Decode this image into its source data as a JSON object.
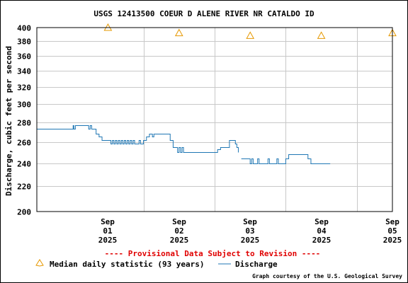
{
  "chart_data": {
    "type": "line",
    "title": "USGS 12413500 COEUR D ALENE RIVER NR CATALDO ID",
    "ylabel": "Discharge, cubic feet per second",
    "ylim": [
      200,
      400
    ],
    "y_scale": "log",
    "grid": true,
    "y_ticks": [
      200,
      220,
      240,
      260,
      280,
      300,
      320,
      340,
      360,
      380,
      400
    ],
    "x_ticks": [
      {
        "day": 1,
        "label": [
          "Sep",
          "01",
          "2025"
        ]
      },
      {
        "day": 2,
        "label": [
          "Sep",
          "02",
          "2025"
        ]
      },
      {
        "day": 3,
        "label": [
          "Sep",
          "03",
          "2025"
        ]
      },
      {
        "day": 4,
        "label": [
          "Sep",
          "04",
          "2025"
        ]
      },
      {
        "day": 5,
        "label": [
          "Sep",
          "05",
          "2025"
        ]
      }
    ],
    "xlim": [
      "2025-08-31 12:00",
      "2025-09-05 12:00"
    ],
    "series": [
      {
        "name": "Median daily statistic (93 years)",
        "type": "marker",
        "color": "#E69800",
        "points": [
          {
            "date": "2025-09-01",
            "y": 400
          },
          {
            "date": "2025-09-02",
            "y": 392
          },
          {
            "date": "2025-09-03",
            "y": 388
          },
          {
            "date": "2025-09-04",
            "y": 388
          },
          {
            "date": "2025-09-05",
            "y": 392
          }
        ]
      },
      {
        "name": "Discharge",
        "type": "line",
        "color": "#1F77B4",
        "segments": [
          [
            [
              "2025-08-31 12:00",
              273
            ],
            [
              "2025-09-01 00:00",
              273
            ],
            [
              "2025-09-01 00:15",
              277
            ],
            [
              "2025-09-01 00:30",
              273
            ],
            [
              "2025-09-01 01:00",
              277
            ],
            [
              "2025-09-01 02:00",
              277
            ],
            [
              "2025-09-01 04:00",
              277
            ],
            [
              "2025-09-01 05:00",
              277
            ],
            [
              "2025-09-01 05:30",
              273
            ],
            [
              "2025-09-01 06:00",
              277
            ],
            [
              "2025-09-01 06:30",
              273
            ],
            [
              "2025-09-01 08:00",
              268
            ],
            [
              "2025-09-01 09:00",
              265
            ],
            [
              "2025-09-01 10:00",
              262
            ],
            [
              "2025-09-01 12:00",
              262
            ],
            [
              "2025-09-01 13:00",
              258
            ],
            [
              "2025-09-01 13:30",
              262
            ],
            [
              "2025-09-01 14:00",
              258
            ],
            [
              "2025-09-01 14:30",
              262
            ],
            [
              "2025-09-01 15:00",
              258
            ],
            [
              "2025-09-01 15:30",
              262
            ],
            [
              "2025-09-01 16:00",
              258
            ],
            [
              "2025-09-01 16:30",
              262
            ],
            [
              "2025-09-01 17:00",
              258
            ],
            [
              "2025-09-01 17:30",
              262
            ],
            [
              "2025-09-01 18:00",
              258
            ],
            [
              "2025-09-01 18:30",
              262
            ],
            [
              "2025-09-01 19:00",
              258
            ],
            [
              "2025-09-01 19:30",
              262
            ],
            [
              "2025-09-01 20:00",
              258
            ],
            [
              "2025-09-01 20:30",
              262
            ],
            [
              "2025-09-01 21:00",
              258
            ],
            [
              "2025-09-01 22:00",
              258
            ],
            [
              "2025-09-01 22:30",
              262
            ],
            [
              "2025-09-01 23:00",
              258
            ],
            [
              "2025-09-02 00:00",
              262
            ],
            [
              "2025-09-02 01:00",
              265
            ],
            [
              "2025-09-02 02:00",
              268
            ],
            [
              "2025-09-02 03:00",
              265
            ],
            [
              "2025-09-02 03:30",
              268
            ],
            [
              "2025-09-02 05:00",
              268
            ],
            [
              "2025-09-02 06:00",
              268
            ],
            [
              "2025-09-02 07:00",
              268
            ],
            [
              "2025-09-02 08:00",
              268
            ],
            [
              "2025-09-02 09:00",
              262
            ],
            [
              "2025-09-02 10:00",
              255
            ],
            [
              "2025-09-02 11:00",
              255
            ],
            [
              "2025-09-02 11:30",
              250
            ],
            [
              "2025-09-02 12:00",
              255
            ],
            [
              "2025-09-02 12:30",
              250
            ],
            [
              "2025-09-02 13:00",
              255
            ],
            [
              "2025-09-02 13:30",
              250
            ],
            [
              "2025-09-02 15:00",
              250
            ],
            [
              "2025-09-02 18:00",
              250
            ],
            [
              "2025-09-02 21:00",
              250
            ],
            [
              "2025-09-03 00:00",
              250
            ],
            [
              "2025-09-03 01:00",
              253
            ],
            [
              "2025-09-03 02:00",
              255
            ],
            [
              "2025-09-03 04:00",
              255
            ],
            [
              "2025-09-03 05:00",
              262
            ],
            [
              "2025-09-03 06:30",
              262
            ],
            [
              "2025-09-03 07:00",
              258
            ],
            [
              "2025-09-03 07:30",
              255
            ],
            [
              "2025-09-03 08:00",
              250
            ]
          ],
          [
            [
              "2025-09-03 09:00",
              244
            ],
            [
              "2025-09-03 11:00",
              244
            ],
            [
              "2025-09-03 12:00",
              240
            ],
            [
              "2025-09-03 12:30",
              244
            ],
            [
              "2025-09-03 13:00",
              240
            ],
            [
              "2025-09-03 14:00",
              240
            ],
            [
              "2025-09-03 14:30",
              244
            ],
            [
              "2025-09-03 15:00",
              240
            ],
            [
              "2025-09-03 17:00",
              240
            ],
            [
              "2025-09-03 18:00",
              244
            ],
            [
              "2025-09-03 18:30",
              240
            ],
            [
              "2025-09-03 20:00",
              240
            ],
            [
              "2025-09-03 21:00",
              244
            ],
            [
              "2025-09-03 21:30",
              240
            ],
            [
              "2025-09-03 23:00",
              240
            ],
            [
              "2025-09-04 00:00",
              244
            ],
            [
              "2025-09-04 01:00",
              248
            ],
            [
              "2025-09-04 03:00",
              248
            ],
            [
              "2025-09-04 05:00",
              248
            ],
            [
              "2025-09-04 07:00",
              248
            ],
            [
              "2025-09-04 07:30",
              244
            ],
            [
              "2025-09-04 08:00",
              244
            ],
            [
              "2025-09-04 08:30",
              240
            ],
            [
              "2025-09-04 12:00",
              240
            ],
            [
              "2025-09-04 15:00",
              240
            ]
          ]
        ]
      }
    ],
    "legend": {
      "position": "bottom",
      "items": [
        "Median daily statistic (93 years)",
        "Discharge"
      ]
    },
    "provisional_note": "---- Provisional Data Subject to Revision ----",
    "credit": "Graph courtesy of the U.S. Geological Survey"
  }
}
